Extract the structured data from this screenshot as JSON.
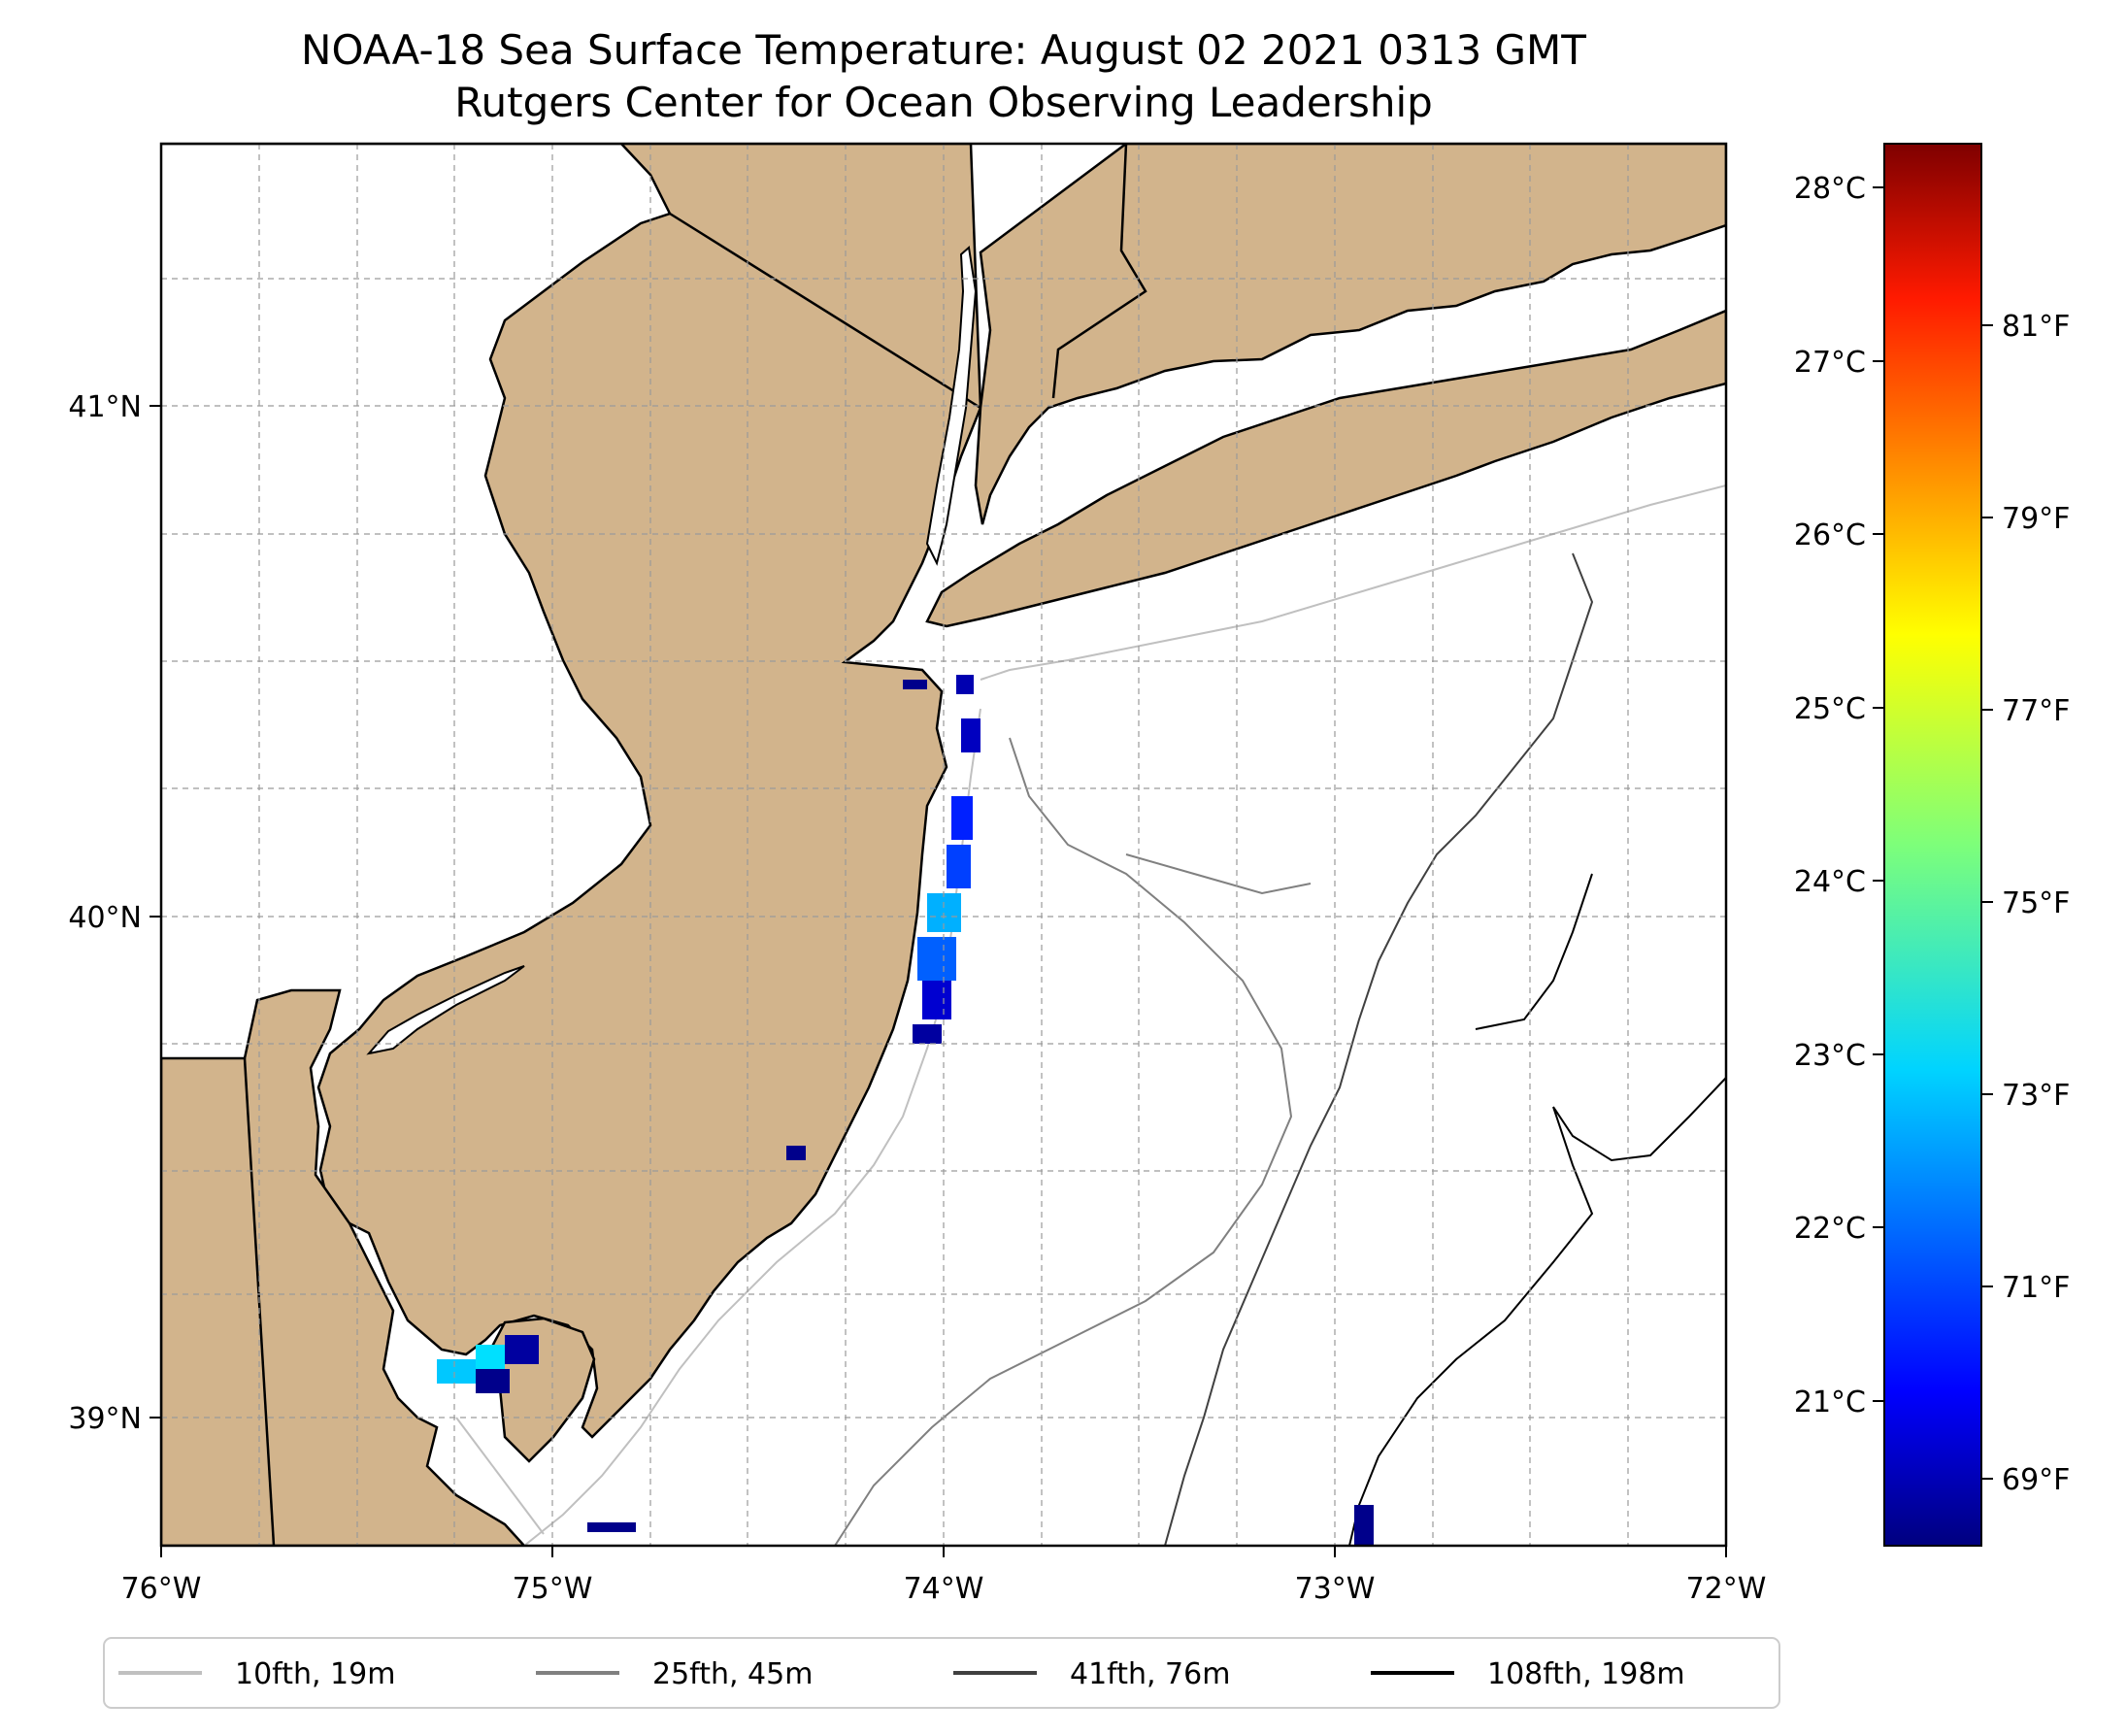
{
  "title": {
    "line1": "NOAA-18 Sea Surface Temperature: August 02 2021 0313 GMT",
    "line2": "Rutgers Center for Ocean Observing Leadership"
  },
  "map": {
    "lon_range": [
      -76,
      -72
    ],
    "lat_range": [
      38.75,
      41.5
    ],
    "x_ticks": [
      "76°W",
      "75°W",
      "74°W",
      "73°W",
      "72°W"
    ],
    "y_ticks": [
      "41°N",
      "40°N",
      "39°N"
    ],
    "land_color": "#d2b48c",
    "grid": true
  },
  "colorbar": {
    "colormap": "jet",
    "celsius_ticks": [
      "28°C",
      "27°C",
      "26°C",
      "25°C",
      "24°C",
      "23°C",
      "22°C",
      "21°C"
    ],
    "fahrenheit_ticks": [
      "81°F",
      "79°F",
      "77°F",
      "75°F",
      "73°F",
      "71°F",
      "69°F"
    ]
  },
  "legend": {
    "position": "bottom",
    "items": [
      {
        "label": "10fth, 19m",
        "color": "#c0c0c0"
      },
      {
        "label": "25fth, 45m",
        "color": "#808080"
      },
      {
        "label": "41fth, 76m",
        "color": "#404040"
      },
      {
        "label": "108fth, 198m",
        "color": "#000000"
      }
    ]
  }
}
